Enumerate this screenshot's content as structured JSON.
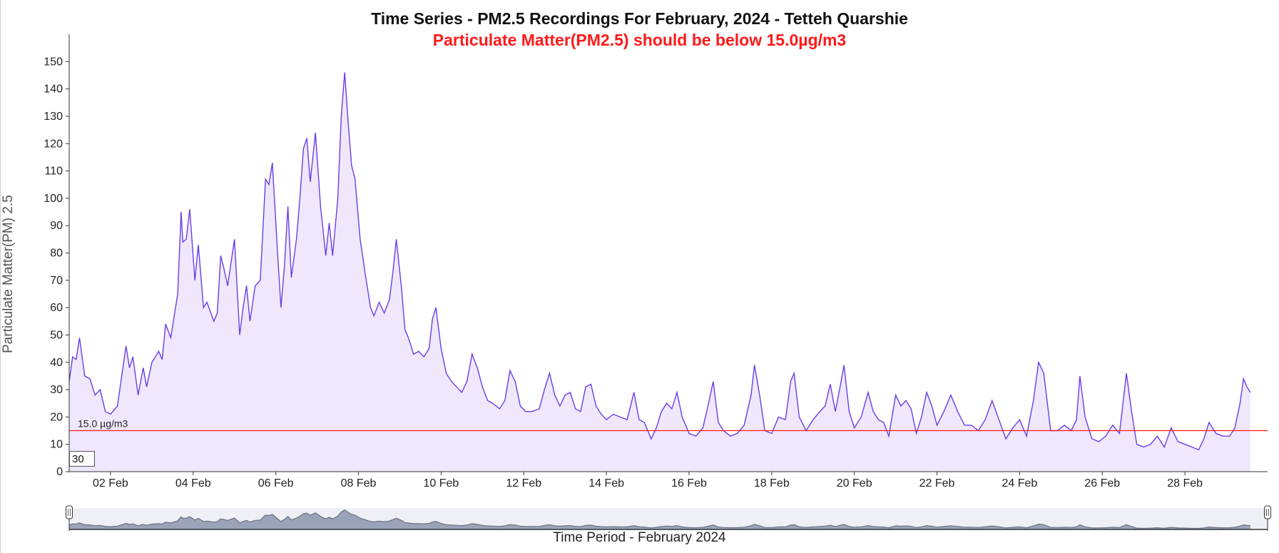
{
  "chart_data": {
    "type": "area",
    "title": "Time Series - PM2.5 Recordings For February, 2024 - Tetteh Quarshie",
    "subtitle": "Particulate Matter(PM2.5) should be below 15.0µg/m3",
    "ylabel": "Particulate Matter(PM) 2.5",
    "xlabel": "Time Period - February 2024",
    "x_domain": [
      "2024-02-01T00:00",
      "2024-03-01T00:00"
    ],
    "ylim": [
      0,
      160
    ],
    "y_ticks": [
      0,
      10,
      20,
      30,
      40,
      50,
      60,
      70,
      80,
      90,
      100,
      110,
      120,
      130,
      140,
      150
    ],
    "x_ticks": [
      {
        "date": "2024-02-02",
        "label": "02 Feb"
      },
      {
        "date": "2024-02-04",
        "label": "04 Feb"
      },
      {
        "date": "2024-02-06",
        "label": "06 Feb"
      },
      {
        "date": "2024-02-08",
        "label": "08 Feb"
      },
      {
        "date": "2024-02-10",
        "label": "10 Feb"
      },
      {
        "date": "2024-02-12",
        "label": "12 Feb"
      },
      {
        "date": "2024-02-14",
        "label": "14 Feb"
      },
      {
        "date": "2024-02-16",
        "label": "16 Feb"
      },
      {
        "date": "2024-02-18",
        "label": "18 Feb"
      },
      {
        "date": "2024-02-20",
        "label": "20 Feb"
      },
      {
        "date": "2024-02-22",
        "label": "22 Feb"
      },
      {
        "date": "2024-02-24",
        "label": "24 Feb"
      },
      {
        "date": "2024-02-26",
        "label": "26 Feb"
      },
      {
        "date": "2024-02-28",
        "label": "28 Feb"
      }
    ],
    "threshold": {
      "value": 15.0,
      "label": "15.0 µg/m3",
      "color": "#ff1a1a"
    },
    "line_color": "#6a3ee6",
    "fill_color": "#efe8fd",
    "grid": false,
    "series": [
      {
        "values": [
          [
            "2024-02-01T00:00",
            33
          ],
          [
            "2024-02-01T02:00",
            42
          ],
          [
            "2024-02-01T04:00",
            41
          ],
          [
            "2024-02-01T06:00",
            49
          ],
          [
            "2024-02-01T09:00",
            35
          ],
          [
            "2024-02-01T12:00",
            34
          ],
          [
            "2024-02-01T15:00",
            28
          ],
          [
            "2024-02-01T18:00",
            30
          ],
          [
            "2024-02-01T21:00",
            22
          ],
          [
            "2024-02-02T00:00",
            21
          ],
          [
            "2024-02-02T04:00",
            24
          ],
          [
            "2024-02-02T09:00",
            46
          ],
          [
            "2024-02-02T11:00",
            38
          ],
          [
            "2024-02-02T13:00",
            42
          ],
          [
            "2024-02-02T16:00",
            28
          ],
          [
            "2024-02-02T19:00",
            38
          ],
          [
            "2024-02-02T21:00",
            31
          ],
          [
            "2024-02-03T00:00",
            40
          ],
          [
            "2024-02-03T04:00",
            44
          ],
          [
            "2024-02-03T06:00",
            41
          ],
          [
            "2024-02-03T08:00",
            54
          ],
          [
            "2024-02-03T11:00",
            49
          ],
          [
            "2024-02-03T15:00",
            65
          ],
          [
            "2024-02-03T17:00",
            95
          ],
          [
            "2024-02-03T18:00",
            84
          ],
          [
            "2024-02-03T20:00",
            85
          ],
          [
            "2024-02-03T22:00",
            96
          ],
          [
            "2024-02-04T01:00",
            70
          ],
          [
            "2024-02-04T03:00",
            83
          ],
          [
            "2024-02-04T06:00",
            60
          ],
          [
            "2024-02-04T08:00",
            62
          ],
          [
            "2024-02-04T12:00",
            55
          ],
          [
            "2024-02-04T14:00",
            58
          ],
          [
            "2024-02-04T16:00",
            79
          ],
          [
            "2024-02-04T18:00",
            74
          ],
          [
            "2024-02-04T20:00",
            68
          ],
          [
            "2024-02-05T00:00",
            85
          ],
          [
            "2024-02-05T03:00",
            50
          ],
          [
            "2024-02-05T05:00",
            60
          ],
          [
            "2024-02-05T07:00",
            68
          ],
          [
            "2024-02-05T09:00",
            55
          ],
          [
            "2024-02-05T12:00",
            68
          ],
          [
            "2024-02-05T15:00",
            70
          ],
          [
            "2024-02-05T18:00",
            107
          ],
          [
            "2024-02-05T20:00",
            105
          ],
          [
            "2024-02-05T22:00",
            113
          ],
          [
            "2024-02-06T01:00",
            80
          ],
          [
            "2024-02-06T03:00",
            60
          ],
          [
            "2024-02-06T05:00",
            75
          ],
          [
            "2024-02-06T07:00",
            97
          ],
          [
            "2024-02-06T09:00",
            71
          ],
          [
            "2024-02-06T12:00",
            85
          ],
          [
            "2024-02-06T14:00",
            100
          ],
          [
            "2024-02-06T16:00",
            118
          ],
          [
            "2024-02-06T18:00",
            122
          ],
          [
            "2024-02-06T20:00",
            106
          ],
          [
            "2024-02-06T23:00",
            124
          ],
          [
            "2024-02-07T02:00",
            97
          ],
          [
            "2024-02-07T05:00",
            79
          ],
          [
            "2024-02-07T07:00",
            91
          ],
          [
            "2024-02-07T09:00",
            79
          ],
          [
            "2024-02-07T12:00",
            100
          ],
          [
            "2024-02-07T14:00",
            130
          ],
          [
            "2024-02-07T16:00",
            146
          ],
          [
            "2024-02-07T18:00",
            128
          ],
          [
            "2024-02-07T20:00",
            112
          ],
          [
            "2024-02-07T22:00",
            107
          ],
          [
            "2024-02-08T01:00",
            85
          ],
          [
            "2024-02-08T04:00",
            72
          ],
          [
            "2024-02-08T07:00",
            60
          ],
          [
            "2024-02-08T09:00",
            57
          ],
          [
            "2024-02-08T12:00",
            62
          ],
          [
            "2024-02-08T15:00",
            58
          ],
          [
            "2024-02-08T18:00",
            63
          ],
          [
            "2024-02-08T20:00",
            73
          ],
          [
            "2024-02-08T22:00",
            85
          ],
          [
            "2024-02-09T01:00",
            67
          ],
          [
            "2024-02-09T03:00",
            52
          ],
          [
            "2024-02-09T05:00",
            49
          ],
          [
            "2024-02-09T08:00",
            43
          ],
          [
            "2024-02-09T11:00",
            44
          ],
          [
            "2024-02-09T14:00",
            42
          ],
          [
            "2024-02-09T17:00",
            45
          ],
          [
            "2024-02-09T19:00",
            56
          ],
          [
            "2024-02-09T21:00",
            60
          ],
          [
            "2024-02-10T00:00",
            45
          ],
          [
            "2024-02-10T03:00",
            36
          ],
          [
            "2024-02-10T06:00",
            33
          ],
          [
            "2024-02-10T09:00",
            31
          ],
          [
            "2024-02-10T12:00",
            29
          ],
          [
            "2024-02-10T15:00",
            33
          ],
          [
            "2024-02-10T18:00",
            43
          ],
          [
            "2024-02-10T21:00",
            38
          ],
          [
            "2024-02-11T00:00",
            31
          ],
          [
            "2024-02-11T03:00",
            26
          ],
          [
            "2024-02-11T06:00",
            25
          ],
          [
            "2024-02-11T10:00",
            23
          ],
          [
            "2024-02-11T13:00",
            26
          ],
          [
            "2024-02-11T16:00",
            37
          ],
          [
            "2024-02-11T19:00",
            33
          ],
          [
            "2024-02-11T22:00",
            24
          ],
          [
            "2024-02-12T01:00",
            22
          ],
          [
            "2024-02-12T05:00",
            22
          ],
          [
            "2024-02-12T09:00",
            23
          ],
          [
            "2024-02-12T12:00",
            30
          ],
          [
            "2024-02-12T15:00",
            36
          ],
          [
            "2024-02-12T18:00",
            28
          ],
          [
            "2024-02-12T21:00",
            24
          ],
          [
            "2024-02-13T00:00",
            28
          ],
          [
            "2024-02-13T03:00",
            29
          ],
          [
            "2024-02-13T06:00",
            23
          ],
          [
            "2024-02-13T09:00",
            22
          ],
          [
            "2024-02-13T12:00",
            31
          ],
          [
            "2024-02-13T15:00",
            32
          ],
          [
            "2024-02-13T18:00",
            24
          ],
          [
            "2024-02-13T21:00",
            21
          ],
          [
            "2024-02-14T00:00",
            19
          ],
          [
            "2024-02-14T04:00",
            21
          ],
          [
            "2024-02-14T08:00",
            20
          ],
          [
            "2024-02-14T12:00",
            19
          ],
          [
            "2024-02-14T16:00",
            29
          ],
          [
            "2024-02-14T19:00",
            19
          ],
          [
            "2024-02-14T22:00",
            18
          ],
          [
            "2024-02-15T02:00",
            12
          ],
          [
            "2024-02-15T05:00",
            16
          ],
          [
            "2024-02-15T08:00",
            22
          ],
          [
            "2024-02-15T11:00",
            25
          ],
          [
            "2024-02-15T14:00",
            23
          ],
          [
            "2024-02-15T17:00",
            29
          ],
          [
            "2024-02-15T20:00",
            20
          ],
          [
            "2024-02-16T00:00",
            14
          ],
          [
            "2024-02-16T04:00",
            13
          ],
          [
            "2024-02-16T08:00",
            16
          ],
          [
            "2024-02-16T11:00",
            24
          ],
          [
            "2024-02-16T14:00",
            33
          ],
          [
            "2024-02-16T17:00",
            18
          ],
          [
            "2024-02-16T20:00",
            15
          ],
          [
            "2024-02-17T00:00",
            13
          ],
          [
            "2024-02-17T04:00",
            14
          ],
          [
            "2024-02-17T08:00",
            17
          ],
          [
            "2024-02-17T12:00",
            28
          ],
          [
            "2024-02-17T14:00",
            39
          ],
          [
            "2024-02-17T17:00",
            28
          ],
          [
            "2024-02-17T20:00",
            15
          ],
          [
            "2024-02-18T00:00",
            14
          ],
          [
            "2024-02-18T04:00",
            20
          ],
          [
            "2024-02-18T08:00",
            19
          ],
          [
            "2024-02-18T11:00",
            33
          ],
          [
            "2024-02-18T13:00",
            36
          ],
          [
            "2024-02-18T16:00",
            20
          ],
          [
            "2024-02-18T20:00",
            15
          ],
          [
            "2024-02-19T00:00",
            19
          ],
          [
            "2024-02-19T04:00",
            22
          ],
          [
            "2024-02-19T07:00",
            24
          ],
          [
            "2024-02-19T10:00",
            32
          ],
          [
            "2024-02-19T13:00",
            22
          ],
          [
            "2024-02-19T16:00",
            32
          ],
          [
            "2024-02-19T18:00",
            39
          ],
          [
            "2024-02-19T21:00",
            22
          ],
          [
            "2024-02-20T00:00",
            16
          ],
          [
            "2024-02-20T04:00",
            20
          ],
          [
            "2024-02-20T08:00",
            29
          ],
          [
            "2024-02-20T11:00",
            22
          ],
          [
            "2024-02-20T14:00",
            19
          ],
          [
            "2024-02-20T17:00",
            18
          ],
          [
            "2024-02-20T20:00",
            13
          ],
          [
            "2024-02-21T00:00",
            28
          ],
          [
            "2024-02-21T03:00",
            24
          ],
          [
            "2024-02-21T06:00",
            26
          ],
          [
            "2024-02-21T09:00",
            23
          ],
          [
            "2024-02-21T12:00",
            14
          ],
          [
            "2024-02-21T15:00",
            20
          ],
          [
            "2024-02-21T18:00",
            29
          ],
          [
            "2024-02-21T21:00",
            24
          ],
          [
            "2024-02-22T00:00",
            17
          ],
          [
            "2024-02-22T04:00",
            22
          ],
          [
            "2024-02-22T08:00",
            28
          ],
          [
            "2024-02-22T12:00",
            22
          ],
          [
            "2024-02-22T16:00",
            17
          ],
          [
            "2024-02-22T20:00",
            17
          ],
          [
            "2024-02-23T00:00",
            15
          ],
          [
            "2024-02-23T04:00",
            19
          ],
          [
            "2024-02-23T08:00",
            26
          ],
          [
            "2024-02-23T12:00",
            19
          ],
          [
            "2024-02-23T16:00",
            12
          ],
          [
            "2024-02-23T20:00",
            16
          ],
          [
            "2024-02-24T00:00",
            19
          ],
          [
            "2024-02-24T04:00",
            13
          ],
          [
            "2024-02-24T08:00",
            26
          ],
          [
            "2024-02-24T11:00",
            40
          ],
          [
            "2024-02-24T14:00",
            36
          ],
          [
            "2024-02-24T18:00",
            15
          ],
          [
            "2024-02-24T22:00",
            15
          ],
          [
            "2024-02-25T02:00",
            17
          ],
          [
            "2024-02-25T06:00",
            15
          ],
          [
            "2024-02-25T09:00",
            19
          ],
          [
            "2024-02-25T11:00",
            35
          ],
          [
            "2024-02-25T14:00",
            20
          ],
          [
            "2024-02-25T18:00",
            12
          ],
          [
            "2024-02-25T22:00",
            11
          ],
          [
            "2024-02-26T02:00",
            13
          ],
          [
            "2024-02-26T06:00",
            17
          ],
          [
            "2024-02-26T10:00",
            14
          ],
          [
            "2024-02-26T14:00",
            36
          ],
          [
            "2024-02-26T17:00",
            22
          ],
          [
            "2024-02-26T20:00",
            10
          ],
          [
            "2024-02-27T00:00",
            9
          ],
          [
            "2024-02-27T04:00",
            10
          ],
          [
            "2024-02-27T08:00",
            13
          ],
          [
            "2024-02-27T12:00",
            9
          ],
          [
            "2024-02-27T16:00",
            16
          ],
          [
            "2024-02-27T20:00",
            11
          ],
          [
            "2024-02-28T00:00",
            10
          ],
          [
            "2024-02-28T04:00",
            9
          ],
          [
            "2024-02-28T08:00",
            8
          ],
          [
            "2024-02-28T11:00",
            12
          ],
          [
            "2024-02-28T14:00",
            18
          ],
          [
            "2024-02-28T18:00",
            14
          ],
          [
            "2024-02-28T22:00",
            13
          ],
          [
            "2024-02-29T02:00",
            13
          ],
          [
            "2024-02-29T05:00",
            16
          ],
          [
            "2024-02-29T08:00",
            25
          ],
          [
            "2024-02-29T10:00",
            34
          ],
          [
            "2024-02-29T12:00",
            31
          ],
          [
            "2024-02-29T14:00",
            29
          ]
        ]
      }
    ]
  },
  "controls": {
    "rolling_window": "30"
  },
  "range_selector": {
    "fill_color": "#9aa3b8",
    "line_color": "#6b7280"
  }
}
